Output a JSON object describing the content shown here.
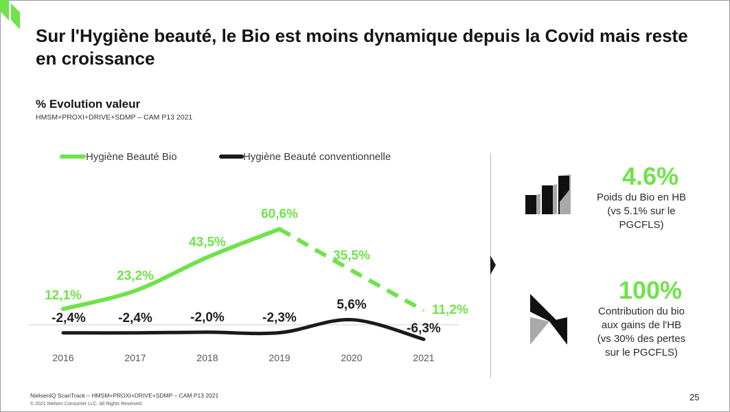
{
  "slide": {
    "title": "Sur l'Hygiène beauté, le Bio est moins dynamique depuis la Covid mais reste en croissance",
    "subtitle": "% Evolution valeur",
    "source_line": "HMSM+PROXI+DRIVE+SDMP – CAM P13 2021"
  },
  "chart_data": {
    "type": "line",
    "x": [
      "2016",
      "2017",
      "2018",
      "2019",
      "2020",
      "2021"
    ],
    "series": [
      {
        "name": "Hygiène Beauté Bio",
        "values": [
          12.1,
          23.2,
          43.5,
          60.6,
          35.5,
          11.2
        ],
        "labels": [
          "12,1%",
          "23,2%",
          "43,5%",
          "60,6%",
          "35,5%",
          "11,2%"
        ],
        "color": "#6fe34a",
        "dashed_from_index": 3
      },
      {
        "name": "Hygiène Beauté conventionnelle",
        "values": [
          -2.4,
          -2.4,
          -2.0,
          -2.3,
          5.6,
          -6.3
        ],
        "labels": [
          "-2,4%",
          "-2,4%",
          "-2,0%",
          "-2,3%",
          "5,6%",
          "-6,3%"
        ],
        "color": "#1a1a1a"
      }
    ],
    "legend_position": "top-left",
    "grid": false,
    "ylim": [
      -10,
      65
    ]
  },
  "kpis": [
    {
      "value": "4.6%",
      "description": [
        "Poids du Bio en HB",
        "(vs 5.1% sur le",
        "PGCFLS)"
      ],
      "icon": "bar-chart-icon"
    },
    {
      "value": "100%",
      "description": [
        "Contribution du bio",
        "aux gains de l'HB",
        "(vs 30% des pertes",
        "sur le PGCFLS)"
      ],
      "icon": "nielseniq-logo-icon"
    }
  ],
  "footer": {
    "source": "NielsenIQ ScanTrack – HMSM+PROXI+DRIVE+SDMP – CAM P13 2021",
    "copyright": "© 2021 Nielsen Consumer LLC. All Rights Reserved.",
    "page_number": "25"
  },
  "colors": {
    "accent": "#6fe34a",
    "dark": "#1a1a1a",
    "grey": "#a9a9a9"
  }
}
